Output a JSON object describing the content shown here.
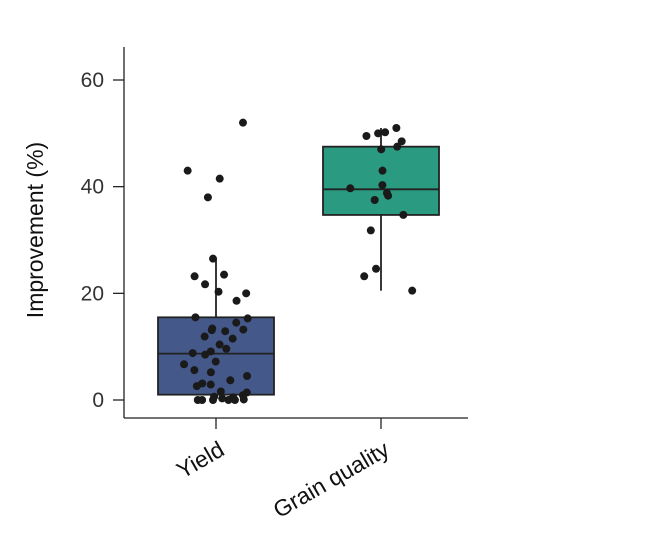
{
  "chart_data": {
    "type": "box",
    "ylabel": "Improvement (%)",
    "ylim": [
      -3,
      64
    ],
    "yticks": [
      0,
      20,
      40,
      60
    ],
    "grid": false,
    "categories": [
      "Yield",
      "Grain quality"
    ],
    "colors": [
      "#44598a",
      "#2a9a80"
    ],
    "boxes": [
      {
        "category": "Yield",
        "whisker_low": 0,
        "q1": 1,
        "median": 8.7,
        "q3": 15.5,
        "whisker_high": 26.5
      },
      {
        "category": "Grain quality",
        "whisker_low": 20.5,
        "q1": 34.7,
        "median": 39.5,
        "q3": 47.5,
        "whisker_high": 51
      }
    ],
    "points": [
      {
        "category": "Yield",
        "values": [
          52,
          43,
          41.5,
          38,
          26.5,
          23.5,
          23.2,
          21.7,
          20.3,
          20,
          18.6,
          15.5,
          15.3,
          14.5,
          13.4,
          13.2,
          13.1,
          12.9,
          11.9,
          11.5,
          10.4,
          9.6,
          9.1,
          8.8,
          8.5,
          7.2,
          6.7,
          5.6,
          5.2,
          4.5,
          3.7,
          3.1,
          2.9,
          2.6,
          1.6,
          1.4,
          0.9,
          0.6,
          0.5,
          0.3,
          0.1,
          0,
          0,
          0,
          0,
          0
        ]
      },
      {
        "category": "Grain quality",
        "values": [
          51,
          50.2,
          50,
          49.5,
          48.5,
          47.5,
          47,
          43,
          40.3,
          39.7,
          38.8,
          38.3,
          37.5,
          34.7,
          31.8,
          24.6,
          23.2,
          20.5
        ]
      }
    ]
  }
}
